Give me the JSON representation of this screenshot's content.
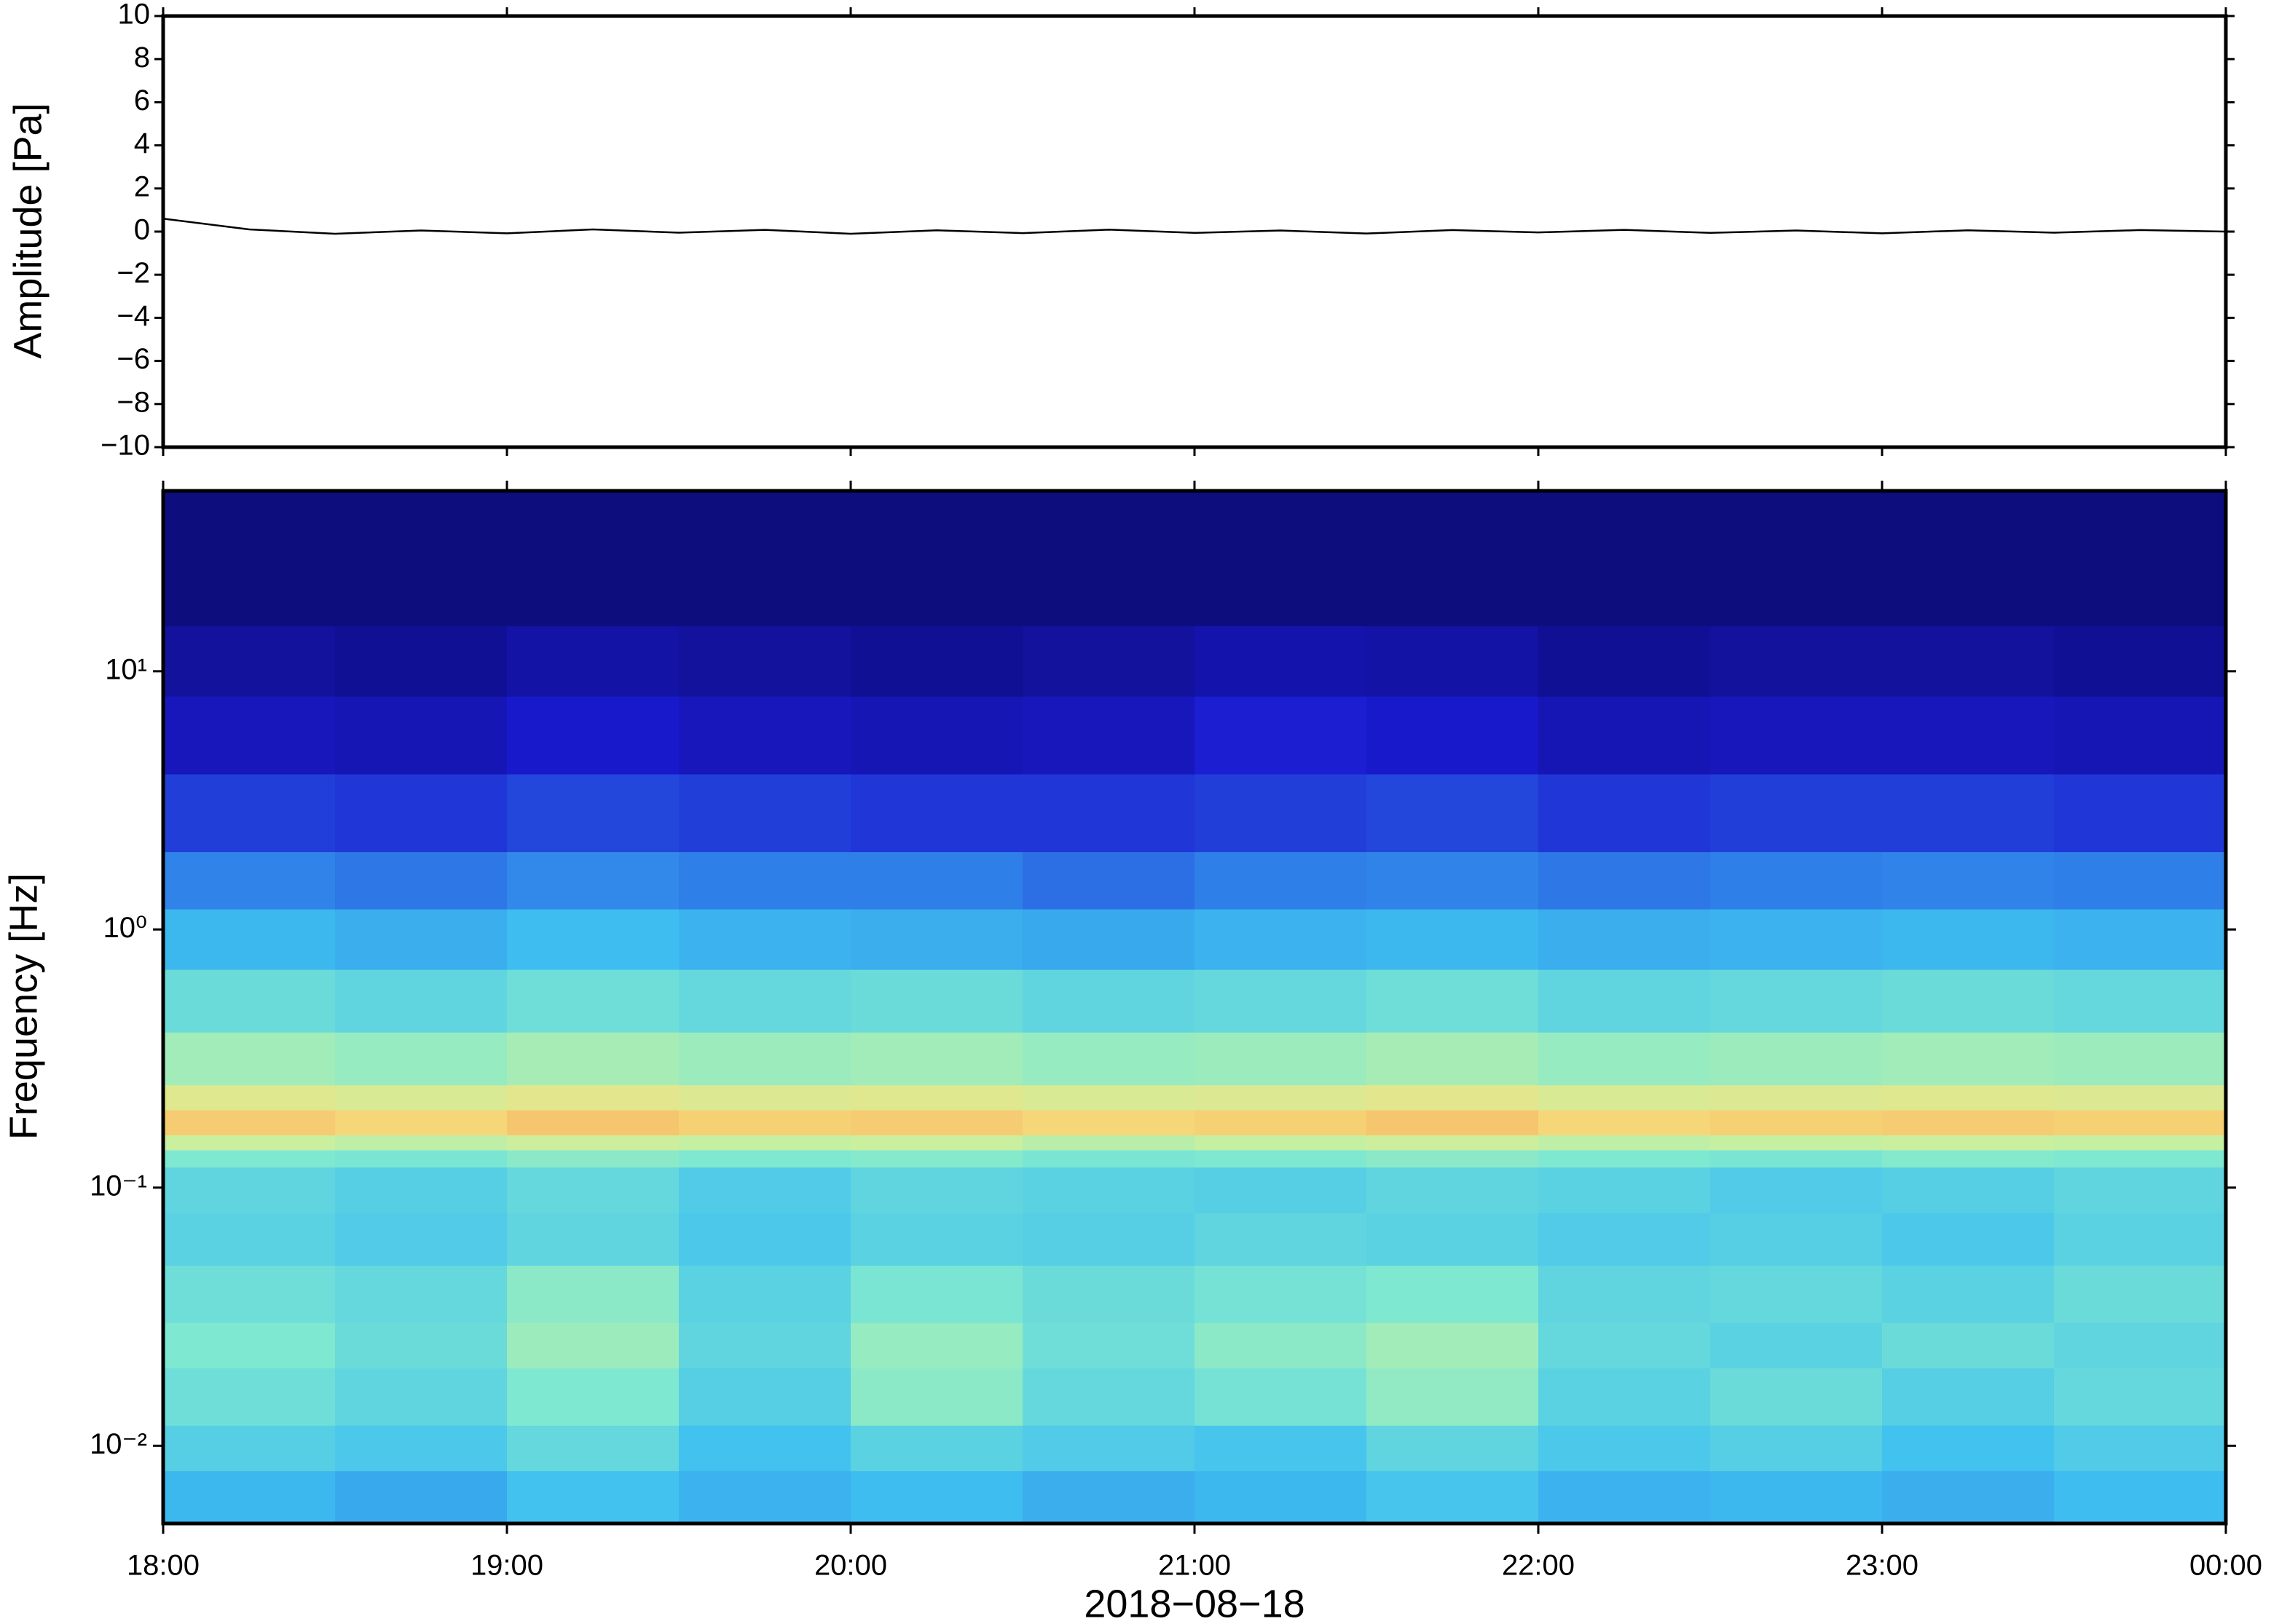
{
  "chart_data": [
    {
      "type": "line",
      "ylabel": "Amplitude [Pa]",
      "x": [
        18,
        18.25,
        18.5,
        18.75,
        19,
        19.25,
        19.5,
        19.75,
        20,
        20.25,
        20.5,
        20.75,
        21,
        21.25,
        21.5,
        21.75,
        22,
        22.25,
        22.5,
        22.75,
        23,
        23.25,
        23.5,
        23.75,
        24
      ],
      "series": [
        {
          "color": "#000000",
          "values": [
            0.6,
            0.1,
            -0.1,
            0.05,
            -0.08,
            0.1,
            -0.05,
            0.08,
            -0.1,
            0.06,
            -0.07,
            0.09,
            -0.06,
            0.05,
            -0.09,
            0.07,
            -0.04,
            0.08,
            -0.06,
            0.05,
            -0.08,
            0.06,
            -0.05,
            0.07,
            0.0
          ]
        }
      ],
      "xlim": [
        18,
        24
      ],
      "xticks": [
        18,
        19,
        20,
        21,
        22,
        23,
        24
      ],
      "ylim": [
        -10,
        10
      ],
      "yticks": [
        {
          "value": -10,
          "label": "−10"
        },
        {
          "value": -8,
          "label": "−8"
        },
        {
          "value": -6,
          "label": "−6"
        },
        {
          "value": -4,
          "label": "−4"
        },
        {
          "value": -2,
          "label": "−2"
        },
        0,
        2,
        4,
        6,
        8,
        10
      ]
    },
    {
      "type": "heatmap",
      "ylabel": "Frequency [Hz]",
      "xlabel": "2018−08−18",
      "log_y": true,
      "xedges": [
        18,
        18.5,
        19,
        19.5,
        20,
        20.5,
        21,
        21.5,
        22,
        22.5,
        23,
        23.5,
        24
      ],
      "yedges": [
        0.005,
        0.008,
        0.012,
        0.02,
        0.03,
        0.05,
        0.08,
        0.12,
        0.14,
        0.16,
        0.2,
        0.25,
        0.4,
        0.7,
        1.2,
        2,
        4,
        8,
        15,
        50
      ],
      "values": [
        [
          0.36,
          0.33,
          0.38,
          0.35,
          0.37,
          0.34,
          0.36,
          0.39,
          0.35,
          0.36,
          0.34,
          0.37
        ],
        [
          0.42,
          0.4,
          0.45,
          0.38,
          0.43,
          0.41,
          0.39,
          0.44,
          0.4,
          0.42,
          0.38,
          0.41
        ],
        [
          0.47,
          0.44,
          0.5,
          0.42,
          0.52,
          0.45,
          0.48,
          0.53,
          0.43,
          0.46,
          0.42,
          0.45
        ],
        [
          0.5,
          0.46,
          0.55,
          0.44,
          0.54,
          0.47,
          0.52,
          0.56,
          0.45,
          0.43,
          0.46,
          0.44
        ],
        [
          0.47,
          0.45,
          0.52,
          0.43,
          0.49,
          0.46,
          0.48,
          0.5,
          0.44,
          0.45,
          0.43,
          0.46
        ],
        [
          0.43,
          0.41,
          0.44,
          0.4,
          0.43,
          0.42,
          0.44,
          0.43,
          0.41,
          0.42,
          0.4,
          0.43
        ],
        [
          0.44,
          0.42,
          0.45,
          0.41,
          0.44,
          0.43,
          0.42,
          0.44,
          0.43,
          0.41,
          0.42,
          0.44
        ],
        [
          0.5,
          0.49,
          0.52,
          0.5,
          0.51,
          0.49,
          0.5,
          0.52,
          0.5,
          0.49,
          0.51,
          0.5
        ],
        [
          0.63,
          0.61,
          0.64,
          0.62,
          0.63,
          0.6,
          0.62,
          0.64,
          0.61,
          0.62,
          0.63,
          0.62
        ],
        [
          0.79,
          0.77,
          0.8,
          0.78,
          0.79,
          0.77,
          0.78,
          0.8,
          0.77,
          0.78,
          0.79,
          0.78
        ],
        [
          0.69,
          0.67,
          0.7,
          0.68,
          0.69,
          0.67,
          0.68,
          0.7,
          0.67,
          0.68,
          0.69,
          0.68
        ],
        [
          0.56,
          0.54,
          0.57,
          0.55,
          0.56,
          0.54,
          0.55,
          0.57,
          0.54,
          0.55,
          0.56,
          0.55
        ],
        [
          0.46,
          0.44,
          0.47,
          0.45,
          0.46,
          0.44,
          0.45,
          0.47,
          0.44,
          0.45,
          0.46,
          0.45
        ],
        [
          0.36,
          0.34,
          0.37,
          0.35,
          0.34,
          0.33,
          0.35,
          0.36,
          0.34,
          0.35,
          0.36,
          0.35
        ],
        [
          0.26,
          0.24,
          0.27,
          0.25,
          0.25,
          0.23,
          0.25,
          0.26,
          0.24,
          0.25,
          0.26,
          0.25
        ],
        [
          0.17,
          0.16,
          0.18,
          0.17,
          0.16,
          0.16,
          0.17,
          0.18,
          0.16,
          0.17,
          0.17,
          0.16
        ],
        [
          0.1,
          0.09,
          0.12,
          0.1,
          0.09,
          0.1,
          0.13,
          0.12,
          0.09,
          0.1,
          0.1,
          0.09
        ],
        [
          0.06,
          0.05,
          0.07,
          0.06,
          0.05,
          0.06,
          0.08,
          0.07,
          0.05,
          0.06,
          0.06,
          0.05
        ],
        [
          0.02,
          0.02,
          0.02,
          0.02,
          0.02,
          0.02,
          0.02,
          0.02,
          0.02,
          0.02,
          0.02,
          0.02
        ]
      ],
      "colormap": [
        "#0a0a6e",
        "#1a1ad0",
        "#2f7fe8",
        "#3fc0f0",
        "#7fe8d0",
        "#c8f0a0",
        "#f5e080",
        "#f5a050",
        "#d03020"
      ],
      "xlim": [
        18,
        24
      ],
      "xticks": [
        {
          "value": 18,
          "label": "18:00"
        },
        {
          "value": 19,
          "label": "19:00"
        },
        {
          "value": 20,
          "label": "20:00"
        },
        {
          "value": 21,
          "label": "21:00"
        },
        {
          "value": 22,
          "label": "22:00"
        },
        {
          "value": 23,
          "label": "23:00"
        },
        {
          "value": 24,
          "label": "00:00"
        }
      ],
      "ylim": [
        0.005,
        50
      ],
      "yticks": [
        {
          "value": 0.01,
          "label": "10⁻²"
        },
        {
          "value": 0.1,
          "label": "10⁻¹"
        },
        {
          "value": 1,
          "label": "10⁰"
        },
        {
          "value": 10,
          "label": "10¹"
        }
      ]
    }
  ]
}
